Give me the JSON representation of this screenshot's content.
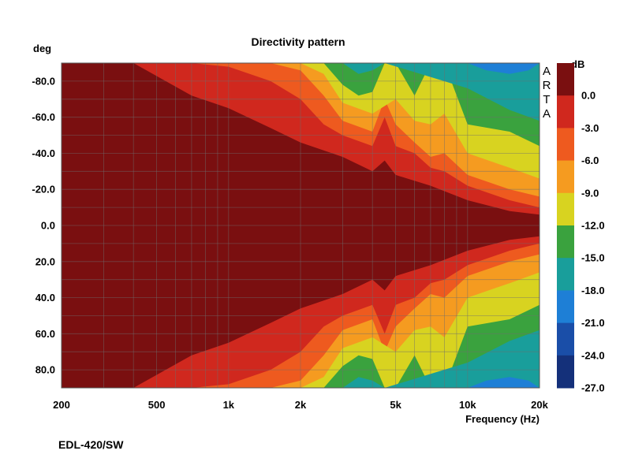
{
  "chart_data": {
    "type": "heatmap",
    "title": "Directivity pattern",
    "xlabel": "Frequency (Hz)",
    "ylabel": "deg",
    "x_scale": "log",
    "xlim": [
      200,
      20000
    ],
    "ylim": [
      -90,
      90
    ],
    "x_ticks": [
      {
        "value": 200,
        "label": "200"
      },
      {
        "value": 500,
        "label": "500"
      },
      {
        "value": 1000,
        "label": "1k"
      },
      {
        "value": 2000,
        "label": "2k"
      },
      {
        "value": 5000,
        "label": "5k"
      },
      {
        "value": 10000,
        "label": "10k"
      },
      {
        "value": 20000,
        "label": "20k"
      }
    ],
    "y_ticks": [
      {
        "value": -80,
        "label": "-80.0"
      },
      {
        "value": -60,
        "label": "-60.0"
      },
      {
        "value": -40,
        "label": "-40.0"
      },
      {
        "value": -20,
        "label": "-20.0"
      },
      {
        "value": 0,
        "label": "0.0"
      },
      {
        "value": 20,
        "label": "20.0"
      },
      {
        "value": 40,
        "label": "40.0"
      },
      {
        "value": 60,
        "label": "60.0"
      },
      {
        "value": 80,
        "label": "80.0"
      }
    ],
    "colorbar": {
      "label": "dB",
      "levels": [
        {
          "value": 0,
          "label": "0.0",
          "color": "#7a0f10"
        },
        {
          "value": -3,
          "label": "-3.0",
          "color": "#d0281e"
        },
        {
          "value": -6,
          "label": "-6.0",
          "color": "#ee5a1f"
        },
        {
          "value": -9,
          "label": "-9.0",
          "color": "#f59b20"
        },
        {
          "value": -12,
          "label": "-12.0",
          "color": "#d8d320"
        },
        {
          "value": -15,
          "label": "-15.0",
          "color": "#3aa23e"
        },
        {
          "value": -18,
          "label": "-18.0",
          "color": "#199e9b"
        },
        {
          "value": -21,
          "label": "-21.0",
          "color": "#1e7fd6"
        },
        {
          "value": -24,
          "label": "-24.0",
          "color": "#1a4ea8"
        },
        {
          "value": -27,
          "label": "-27.0",
          "color": "#14307a"
        }
      ]
    },
    "beamwidth_-3dB": {
      "freq": [
        200,
        400,
        700,
        1000,
        1500,
        2000,
        3000,
        4000,
        4500,
        5000,
        7000,
        10000,
        15000,
        20000
      ],
      "deg": [
        90,
        90,
        72,
        65,
        54,
        46,
        38,
        30,
        36,
        28,
        22,
        14,
        8,
        6
      ]
    },
    "contours": [
      {
        "db": -6,
        "freq": [
          200,
          300,
          400,
          500,
          700,
          1000,
          1500,
          2000,
          2500,
          3000,
          4000,
          4500,
          5000,
          6000,
          7000,
          8000,
          10000,
          15000,
          20000
        ],
        "deg": [
          90,
          90,
          90,
          90,
          90,
          88,
          80,
          70,
          56,
          50,
          44,
          60,
          44,
          40,
          32,
          30,
          22,
          14,
          10
        ]
      },
      {
        "db": -9,
        "freq": [
          200,
          500,
          1000,
          1500,
          2000,
          2500,
          3000,
          4000,
          4500,
          5000,
          6000,
          7000,
          8000,
          10000,
          15000,
          20000
        ],
        "deg": [
          90,
          90,
          90,
          90,
          86,
          72,
          58,
          52,
          70,
          56,
          46,
          38,
          40,
          28,
          20,
          16
        ]
      },
      {
        "db": -12,
        "freq": [
          200,
          500,
          1000,
          2000,
          2500,
          3000,
          4000,
          5000,
          6000,
          7000,
          8000,
          10000,
          15000,
          20000
        ],
        "deg": [
          90,
          90,
          90,
          90,
          84,
          68,
          62,
          70,
          58,
          56,
          62,
          40,
          32,
          26
        ]
      },
      {
        "db": -15,
        "freq": [
          200,
          500,
          1000,
          2000,
          2500,
          3000,
          3500,
          4000,
          4500,
          5000,
          6000,
          7000,
          8000,
          10000,
          15000,
          20000
        ],
        "deg": [
          90,
          90,
          90,
          90,
          90,
          78,
          72,
          74,
          90,
          90,
          72,
          90,
          90,
          56,
          52,
          44
        ]
      },
      {
        "db": -18,
        "freq": [
          200,
          500,
          1000,
          2000,
          3000,
          3500,
          4000,
          4500,
          10000,
          15000,
          20000
        ],
        "deg": [
          90,
          90,
          90,
          90,
          90,
          84,
          86,
          90,
          76,
          64,
          58
        ]
      },
      {
        "db": -21,
        "freq": [
          200,
          10000,
          12000,
          15000,
          18000,
          20000
        ],
        "deg": [
          90,
          90,
          86,
          84,
          86,
          90
        ]
      }
    ],
    "note": "EDL-420/SW"
  },
  "watermark": "ARTA"
}
